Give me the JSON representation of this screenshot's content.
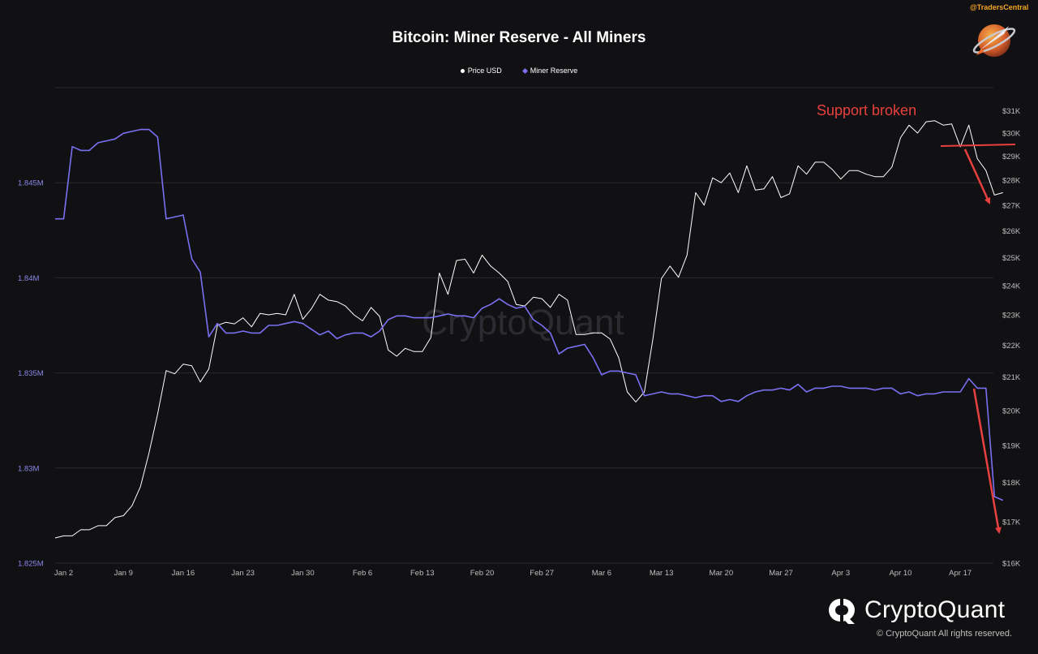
{
  "header": {
    "handle": "@TradersCentral",
    "rocket_icon": "rocket-planet-icon"
  },
  "annotation": {
    "text": "Support broken",
    "color": "#e8403e"
  },
  "brand": {
    "name": "CryptoQuant",
    "copyright": "© CryptoQuant All rights reserved.",
    "logo_icon": "cryptoquant-logo-icon"
  },
  "colors": {
    "background": "#111114",
    "price": "#ffffff",
    "reserve": "#7b6ff2",
    "grid": "#2a2a2e",
    "left_axis_text": "#8b86e8",
    "right_axis_text": "#bdbdbd",
    "arrow": "#e8403e"
  },
  "chart_data": {
    "type": "line",
    "title": "Bitcoin: Miner Reserve - All Miners",
    "legend": [
      "Price USD",
      "Miner Reserve"
    ],
    "legend_position": "top-center",
    "grid": true,
    "x_tick_labels": [
      "Jan 2",
      "Jan 9",
      "Jan 16",
      "Jan 23",
      "Jan 30",
      "Feb 6",
      "Feb 13",
      "Feb 20",
      "Feb 27",
      "Mar 6",
      "Mar 13",
      "Mar 20",
      "Mar 27",
      "Apr 3",
      "Apr 10",
      "Apr 17"
    ],
    "left_axis": {
      "label": "",
      "ticks": [
        "1.825M",
        "1.83M",
        "1.835M",
        "1.84M",
        "1.845M"
      ],
      "range": [
        1825000,
        1850000
      ]
    },
    "right_axis": {
      "label": "",
      "scale": "log",
      "ticks": [
        "$16K",
        "$17K",
        "$18K",
        "$19K",
        "$20K",
        "$21K",
        "$22K",
        "$23K",
        "$24K",
        "$25K",
        "$26K",
        "$27K",
        "$28K",
        "$29K",
        "$30K",
        "$31K"
      ],
      "range": [
        16000,
        31500
      ]
    },
    "series": [
      {
        "name": "Price USD",
        "axis": "right",
        "start": "2023-01-01",
        "step_days": 1,
        "values": [
          16600,
          16650,
          16650,
          16800,
          16800,
          16900,
          16900,
          17100,
          17150,
          17400,
          17900,
          18800,
          19900,
          21200,
          21100,
          21400,
          21350,
          20850,
          21250,
          22650,
          22750,
          22700,
          22900,
          22600,
          23050,
          23000,
          23050,
          23000,
          23700,
          22850,
          23200,
          23700,
          23500,
          23450,
          23300,
          23000,
          22800,
          23250,
          22950,
          21850,
          21650,
          21900,
          21800,
          21800,
          22250,
          24450,
          23700,
          24900,
          24950,
          24450,
          25100,
          24700,
          24450,
          24150,
          23350,
          23300,
          23600,
          23550,
          23250,
          23700,
          23500,
          22350,
          22350,
          22400,
          22400,
          22200,
          21600,
          20550,
          20250,
          20550,
          22200,
          24250,
          24700,
          24300,
          25100,
          27500,
          27000,
          28100,
          27900,
          28300,
          27500,
          28600,
          27600,
          27650,
          28150,
          27300,
          27450,
          28600,
          28250,
          28750,
          28750,
          28450,
          28050,
          28400,
          28400,
          28250,
          28150,
          28150,
          28550,
          29800,
          30350,
          30000,
          30500,
          30550,
          30350,
          30400,
          29400,
          30350,
          28900,
          28400,
          27400,
          27500
        ]
      },
      {
        "name": "Miner Reserve",
        "axis": "left",
        "start": "2023-01-01",
        "step_days": 1,
        "values": [
          1843100,
          1843100,
          1846900,
          1846700,
          1846700,
          1847100,
          1847200,
          1847300,
          1847600,
          1847700,
          1847800,
          1847800,
          1847400,
          1843100,
          1843200,
          1843300,
          1841000,
          1840300,
          1836900,
          1837600,
          1837100,
          1837100,
          1837200,
          1837100,
          1837100,
          1837500,
          1837500,
          1837600,
          1837700,
          1837600,
          1837300,
          1837000,
          1837200,
          1836800,
          1837000,
          1837100,
          1837100,
          1836900,
          1837200,
          1837800,
          1838000,
          1838000,
          1837900,
          1837900,
          1837900,
          1838000,
          1838100,
          1838000,
          1838000,
          1837900,
          1838400,
          1838600,
          1838900,
          1838600,
          1838400,
          1838500,
          1837800,
          1837500,
          1837100,
          1836000,
          1836300,
          1836400,
          1836500,
          1835800,
          1834900,
          1835100,
          1835100,
          1835000,
          1834900,
          1833800,
          1833900,
          1834000,
          1833900,
          1833900,
          1833800,
          1833700,
          1833800,
          1833800,
          1833500,
          1833600,
          1833500,
          1833800,
          1834000,
          1834100,
          1834100,
          1834200,
          1834100,
          1834400,
          1834000,
          1834200,
          1834200,
          1834300,
          1834300,
          1834200,
          1834200,
          1834200,
          1834100,
          1834200,
          1834200,
          1833900,
          1834000,
          1833800,
          1833900,
          1833900,
          1834000,
          1834000,
          1834000,
          1834700,
          1834200,
          1834200,
          1828500,
          1828300
        ]
      }
    ]
  }
}
